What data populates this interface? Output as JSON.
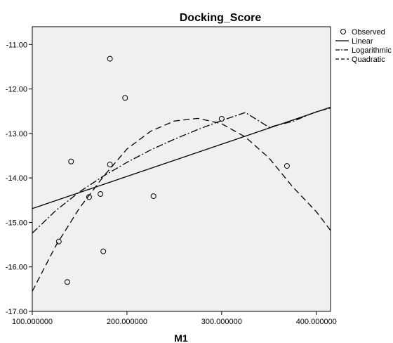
{
  "chart_data": {
    "type": "scatter",
    "title": "Docking_Score",
    "xlabel": "M1",
    "ylabel": "",
    "xlim": [
      100,
      415
    ],
    "ylim": [
      -17,
      -10.6
    ],
    "x_ticks": [
      100,
      200,
      300,
      400
    ],
    "x_tick_labels": [
      "100.000000",
      "200.000000",
      "300.000000",
      "400.000000"
    ],
    "y_ticks": [
      -17,
      -16,
      -15,
      -14,
      -13,
      -12,
      -11
    ],
    "y_tick_labels": [
      "-17.00",
      "-16.00",
      "-15.00",
      "-14.00",
      "-13.00",
      "-12.00",
      "-11.00"
    ],
    "grid": false,
    "background": "#f0f0f0",
    "legend_position": "right-top",
    "series": [
      {
        "name": "Observed",
        "style": "circle-marker",
        "x": [
          128,
          137,
          141,
          160,
          172,
          175,
          182,
          182,
          198,
          228,
          300,
          369
        ],
        "y": [
          -15.43,
          -16.34,
          -13.63,
          -14.43,
          -14.36,
          -15.65,
          -11.32,
          -13.7,
          -12.2,
          -14.41,
          -12.67,
          -13.73
        ]
      },
      {
        "name": "Linear",
        "style": "solid",
        "x": [
          100,
          415
        ],
        "y": [
          -14.69,
          -12.41
        ]
      },
      {
        "name": "Logarithmic",
        "style": "dash-dot",
        "x": [
          100,
          125,
          150,
          175,
          200,
          225,
          250,
          275,
          300,
          325,
          350,
          375,
          400,
          415
        ],
        "y": [
          -15.24,
          -14.73,
          -14.31,
          -13.96,
          -13.65,
          -13.37,
          -13.13,
          -12.91,
          -12.71,
          -12.53,
          -12.86,
          -12.73,
          -12.51,
          -12.43
        ]
      },
      {
        "name": "Quadratic",
        "style": "dashed",
        "x": [
          100,
          125,
          150,
          175,
          200,
          225,
          250,
          275,
          300,
          325,
          350,
          375,
          400,
          415
        ],
        "y": [
          -16.55,
          -15.52,
          -14.67,
          -13.97,
          -13.35,
          -12.95,
          -12.72,
          -12.66,
          -12.78,
          -13.08,
          -13.55,
          -14.2,
          -14.76,
          -15.18
        ]
      }
    ]
  }
}
